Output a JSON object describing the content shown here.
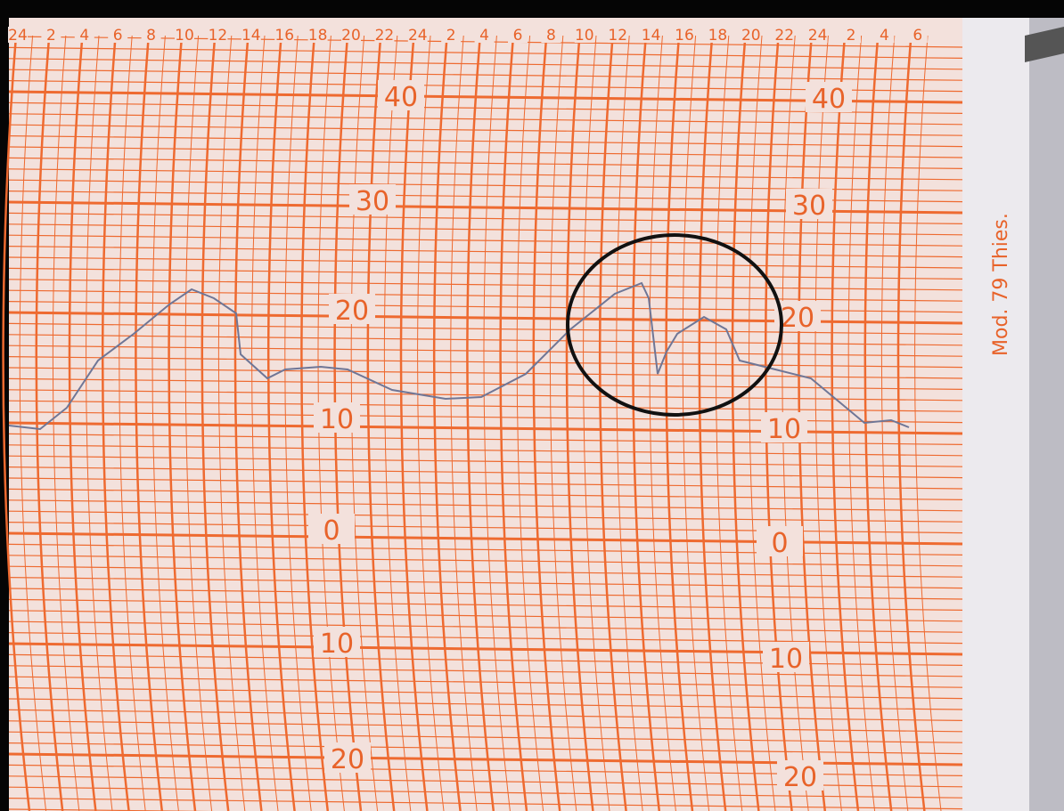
{
  "header": {
    "hours": [
      "24",
      "2",
      "4",
      "6",
      "8",
      "10",
      "12",
      "14",
      "16",
      "18",
      "20",
      "22",
      "24",
      "2",
      "4",
      "6",
      "8",
      "10",
      "12",
      "14",
      "16",
      "18",
      "20",
      "22",
      "24",
      "2",
      "4",
      "6"
    ]
  },
  "scale_left": [
    "40",
    "30",
    "20",
    "10",
    "0",
    "10",
    "20"
  ],
  "scale_right": [
    "40",
    "30",
    "20",
    "10",
    "0",
    "10",
    "20"
  ],
  "side_label": "Mod. 79 Thies."
}
